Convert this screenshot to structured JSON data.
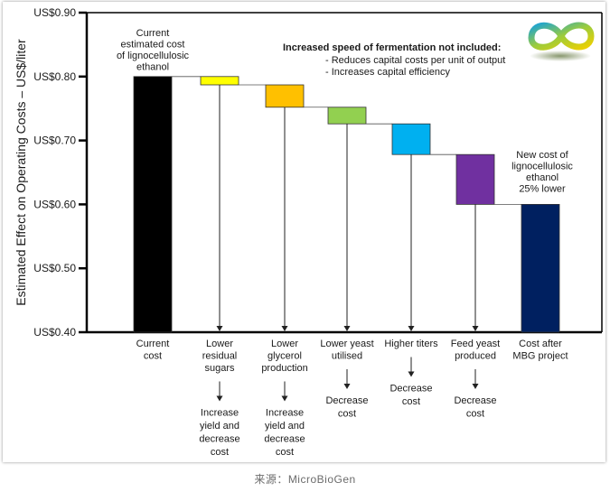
{
  "chart_data": {
    "type": "bar",
    "subtype": "waterfall",
    "ylabel": "Estimated Effect on Operating Costs – US$/liter",
    "ylim": [
      0.4,
      0.9
    ],
    "yticks": [
      0.4,
      0.5,
      0.6,
      0.7,
      0.8,
      0.9
    ],
    "ytick_labels": [
      "US$0.40",
      "US$0.50",
      "US$0.60",
      "US$0.70",
      "US$0.80",
      "US$0.90"
    ],
    "grid": false,
    "categories": [
      "Current cost",
      "Lower residual sugars",
      "Lower glycerol production",
      "Lower yeast utilised",
      "Higher titers",
      "Feed yeast produced",
      "Cost after MBG project"
    ],
    "bars": [
      {
        "label": [
          "Current",
          "cost"
        ],
        "kind": "total",
        "bottom": 0.4,
        "top": 0.8,
        "color": "#000000"
      },
      {
        "label": [
          "Lower",
          "residual",
          "sugars"
        ],
        "kind": "step",
        "bottom": 0.787,
        "top": 0.8,
        "color": "#ffff00"
      },
      {
        "label": [
          "Lower",
          "glycerol",
          "production"
        ],
        "kind": "step",
        "bottom": 0.752,
        "top": 0.787,
        "color": "#ffc000"
      },
      {
        "label": [
          "Lower yeast",
          "utilised"
        ],
        "kind": "step",
        "bottom": 0.726,
        "top": 0.752,
        "color": "#92d050"
      },
      {
        "label": [
          "Higher titers"
        ],
        "kind": "step",
        "bottom": 0.678,
        "top": 0.726,
        "color": "#00b0f0"
      },
      {
        "label": [
          "Feed yeast",
          "produced"
        ],
        "kind": "step",
        "bottom": 0.6,
        "top": 0.678,
        "color": "#7030a0"
      },
      {
        "label": [
          "Cost after",
          "MBG project"
        ],
        "kind": "total",
        "bottom": 0.4,
        "top": 0.6,
        "color": "#002060"
      }
    ],
    "effects": [
      {
        "bar": 1,
        "lines": [
          "Increase",
          "yield and",
          "decrease",
          "cost"
        ]
      },
      {
        "bar": 2,
        "lines": [
          "Increase",
          "yield and",
          "decrease",
          "cost"
        ]
      },
      {
        "bar": 3,
        "lines": [
          "Decrease",
          "cost"
        ]
      },
      {
        "bar": 4,
        "lines": [
          "Decrease",
          "cost"
        ]
      },
      {
        "bar": 5,
        "lines": [
          "Decrease",
          "cost"
        ]
      }
    ],
    "annotations": {
      "current": [
        "Current",
        "estimated cost",
        "of lignocellulosic",
        "ethanol"
      ],
      "new": [
        "New cost of",
        "lignocellulosic",
        "ethanol",
        "25% lower"
      ],
      "note_title": "Increased speed of fermentation not included:",
      "note_items": [
        "- Reduces capital costs per unit of output",
        "- Increases capital efficiency"
      ]
    }
  },
  "logo": {
    "icon": "infinity-logo-icon",
    "colors": [
      "#1aa3d6",
      "#9ccc3c",
      "#f0d000"
    ]
  },
  "caption": "来源：MicroBioGen"
}
